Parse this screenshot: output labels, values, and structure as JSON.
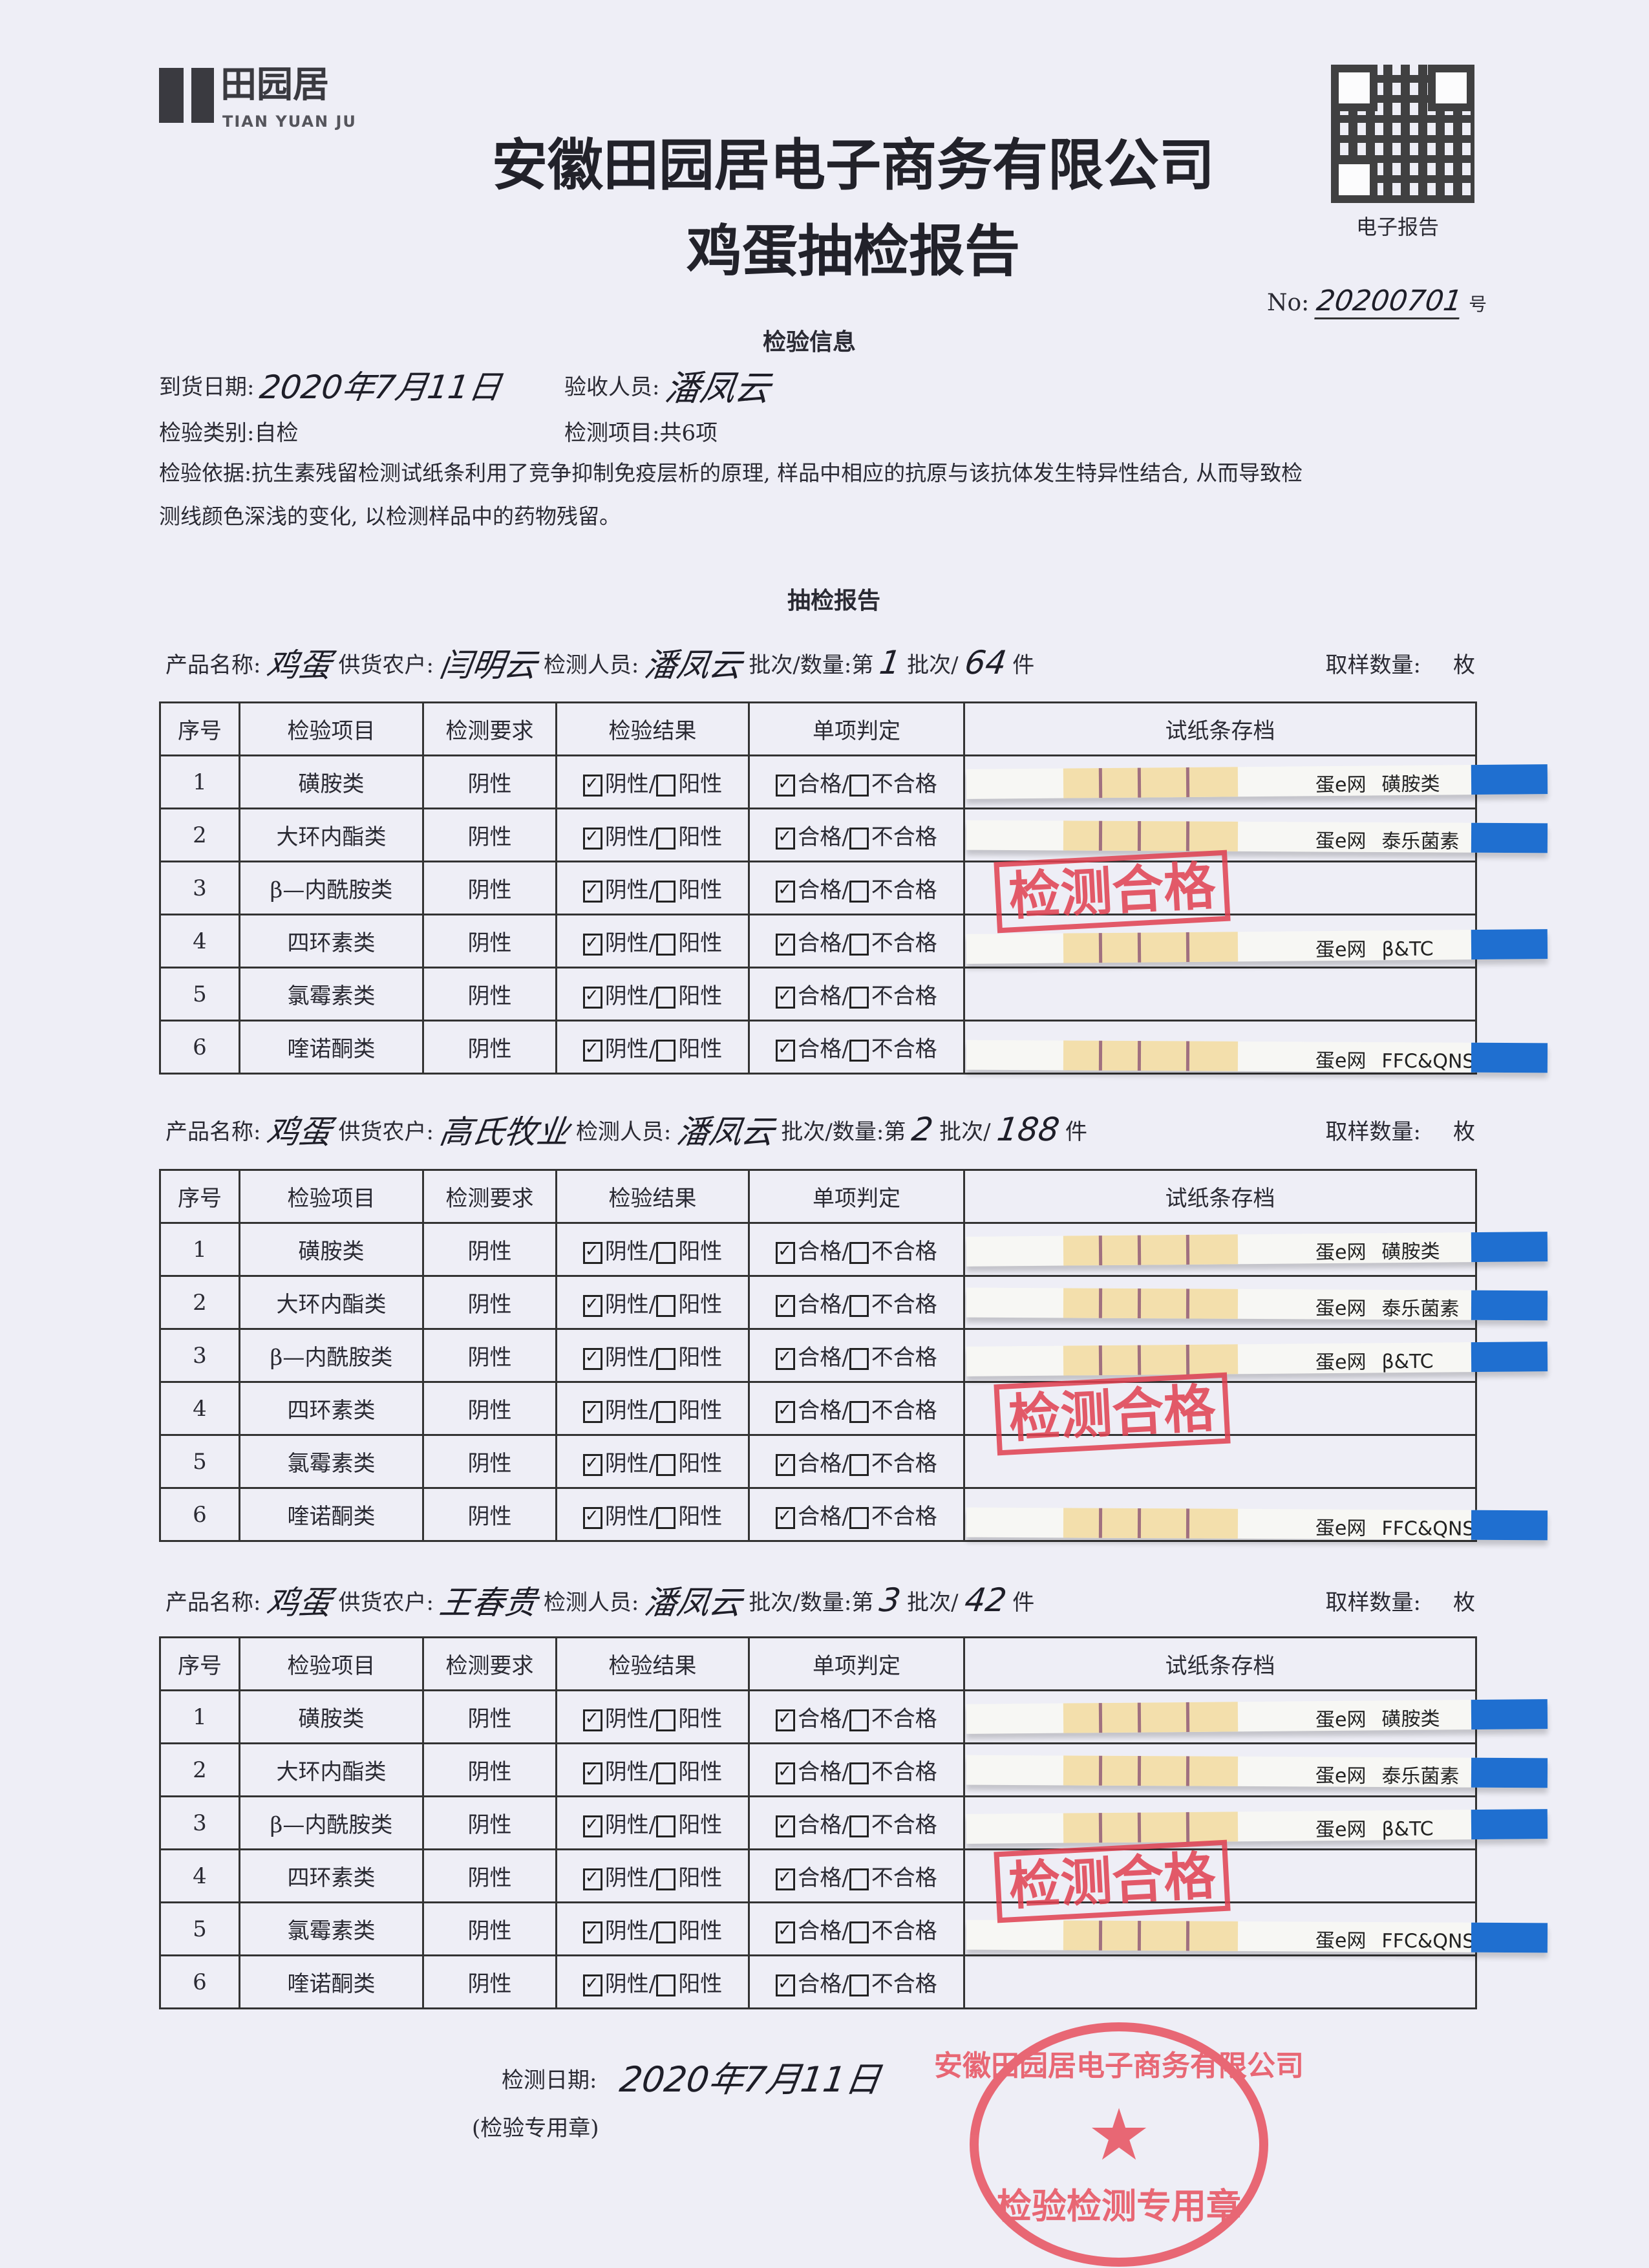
{
  "logo": {
    "cn": "田园居",
    "en": "TIAN YUAN JU"
  },
  "header": {
    "company": "安徽田园居电子商务有限公司",
    "title": "鸡蛋抽检报告",
    "qr_caption": "电子报告",
    "no_label": "No:",
    "no_value": "20200701",
    "no_suffix": "号"
  },
  "info": {
    "heading": "检验信息",
    "arrival_label": "到货日期:",
    "arrival_value": "2020年7月11日",
    "receiver_label": "验收人员:",
    "receiver_value": "潘凤云",
    "category_label": "检验类别:",
    "category_value": "自检",
    "items_label": "检测项目:",
    "items_value": "共6项",
    "basis_line1": "检验依据:抗生素残留检测试纸条利用了竞争抑制免疫层析的原理, 样品中相应的抗原与该抗体发生特异性结合, 从而导致检",
    "basis_line2": "测线颜色深浅的变化, 以检测样品中的药物残留。"
  },
  "report_heading": "抽检报告",
  "labels": {
    "product": "产品名称:",
    "supplier": "供货农户:",
    "inspector": "检测人员:",
    "batch_pre": "批次/数量:第",
    "batch_mid": "批次/",
    "batch_unit": "件",
    "sample": "取样数量:",
    "sample_unit": "枚",
    "columns": [
      "序号",
      "检验项目",
      "检测要求",
      "检验结果",
      "单项判定",
      "试纸条存档"
    ],
    "negative": "阴性",
    "positive": "阳性",
    "pass": "合格",
    "fail": "不合格"
  },
  "items": [
    "磺胺类",
    "大环内酯类",
    "β—内酰胺类",
    "四环素类",
    "氯霉素类",
    "喹诺酮类"
  ],
  "requirement": "阴性",
  "stamp_text": "检测合格",
  "strip_brand": "蛋e网",
  "sections": [
    {
      "product": "鸡蛋",
      "supplier": "闫明云",
      "inspector": "潘凤云",
      "batch": "1",
      "quantity": "64",
      "checked": true,
      "strips": [
        {
          "row": 1,
          "label": "磺胺类"
        },
        {
          "row": 2,
          "label": "泰乐菌素"
        },
        {
          "row": 4,
          "label": "β&TC"
        },
        {
          "row": 6,
          "label": "FFC&QNS"
        }
      ]
    },
    {
      "product": "鸡蛋",
      "supplier": "高氏牧业",
      "inspector": "潘凤云",
      "batch": "2",
      "quantity": "188",
      "checked": true,
      "strips": [
        {
          "row": 1,
          "label": "磺胺类"
        },
        {
          "row": 2,
          "label": "泰乐菌素"
        },
        {
          "row": 3,
          "label": "β&TC"
        },
        {
          "row": 6,
          "label": "FFC&QNS"
        }
      ]
    },
    {
      "product": "鸡蛋",
      "supplier": "王春贵",
      "inspector": "潘凤云",
      "batch": "3",
      "quantity": "42",
      "checked": true,
      "strips": [
        {
          "row": 1,
          "label": "磺胺类"
        },
        {
          "row": 2,
          "label": "泰乐菌素"
        },
        {
          "row": 3,
          "label": "β&TC"
        },
        {
          "row": 5,
          "label": "FFC&QNS"
        }
      ]
    }
  ],
  "footer": {
    "date_label": "检测日期:",
    "date_value": "2020年7月11日",
    "seal_label": "(检验专用章)"
  },
  "seal": {
    "ring_text": "安徽田园居电子商务有限公司",
    "bottom_text": "检验检测专用章"
  },
  "colors": {
    "stamp_red": "#e04050",
    "strip_blue": "#1f6fd0",
    "strip_pad": "#f3dfac"
  }
}
